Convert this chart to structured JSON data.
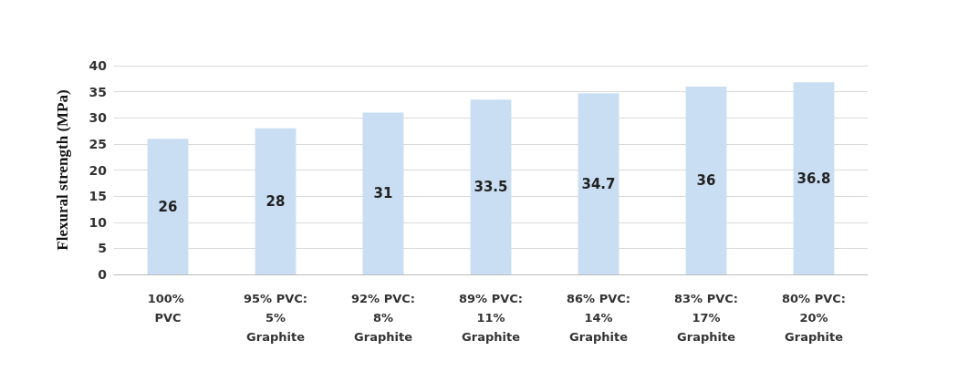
{
  "chart_data": {
    "type": "bar",
    "ylabel": "Flexural strength (MPa)",
    "categories": [
      "100% PVC",
      "95% PVC: 5% Graphite",
      "92% PVC: 8% Graphite",
      "89% PVC: 11% Graphite",
      "86% PVC: 14% Graphite",
      "83% PVC: 17% Graphite",
      "80% PVC: 20% Graphite"
    ],
    "values": [
      26,
      28,
      31,
      33.5,
      34.7,
      36,
      36.8
    ],
    "color": "#c9def2",
    "ylim": [
      0,
      40
    ],
    "yticks": [
      0,
      5,
      10,
      15,
      20,
      25,
      30,
      35,
      40
    ],
    "grid": "y",
    "data_labels": true
  }
}
